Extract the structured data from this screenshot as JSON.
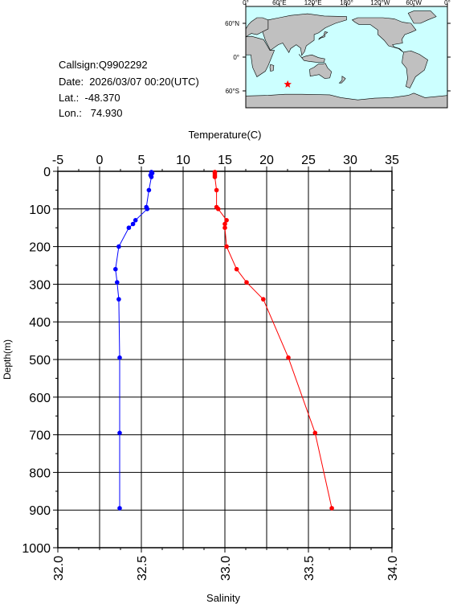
{
  "info": {
    "callsign": "Callsign:Q9902292",
    "date": "Date:  2026/03/07 00:20(UTC)",
    "lat": "Lat.:  -48.370",
    "lon": "Lon.:   74.930"
  },
  "map": {
    "lon_labels": [
      "0°",
      "60°E",
      "120°E",
      "180°",
      "120°W",
      "60°W",
      "0°"
    ],
    "lat_labels": [
      "60°N",
      "0°",
      "60°S"
    ],
    "marker": {
      "lat": -48.37,
      "lon": 74.93
    },
    "ocean_color": "#ccffff",
    "land_color": "#c0c0c0",
    "marker_color": "#ff0000"
  },
  "chart_data": {
    "type": "line",
    "title": "",
    "ylabel": "Depth(m)",
    "ylim": [
      0,
      1000
    ],
    "yticks": [
      "0",
      "100",
      "200",
      "300",
      "400",
      "500",
      "600",
      "700",
      "800",
      "900",
      "1000"
    ],
    "x_top": {
      "label": "Temperature(C)",
      "lim": [
        -5,
        35
      ],
      "ticks": [
        "-5",
        "0",
        "5",
        "10",
        "15",
        "20",
        "25",
        "30",
        "35"
      ]
    },
    "x_bottom": {
      "label": "Salinity",
      "lim": [
        32.0,
        34.0
      ],
      "ticks": [
        "32.0",
        "32.5",
        "33.0",
        "33.5",
        "34.0"
      ]
    },
    "grid": true,
    "series": [
      {
        "axis": "temperature",
        "color": "#0000ff",
        "depth": [
          2,
          5,
          10,
          15,
          50,
          95,
          100,
          130,
          140,
          150,
          200,
          260,
          295,
          340,
          495,
          695,
          895
        ],
        "values": [
          6.2,
          6.3,
          6.1,
          6.2,
          5.9,
          5.6,
          5.7,
          4.3,
          4.0,
          3.5,
          2.3,
          1.9,
          2.1,
          2.3,
          2.4,
          2.4,
          2.4
        ]
      },
      {
        "axis": "salinity",
        "color": "#ff0000",
        "depth": [
          2,
          5,
          10,
          15,
          50,
          95,
          100,
          130,
          140,
          150,
          200,
          260,
          295,
          340,
          495,
          695,
          895
        ],
        "values": [
          32.94,
          32.94,
          32.94,
          32.94,
          32.95,
          32.95,
          32.96,
          33.01,
          33.0,
          33.0,
          33.01,
          33.07,
          33.13,
          33.23,
          33.38,
          33.54,
          33.64
        ]
      }
    ]
  }
}
